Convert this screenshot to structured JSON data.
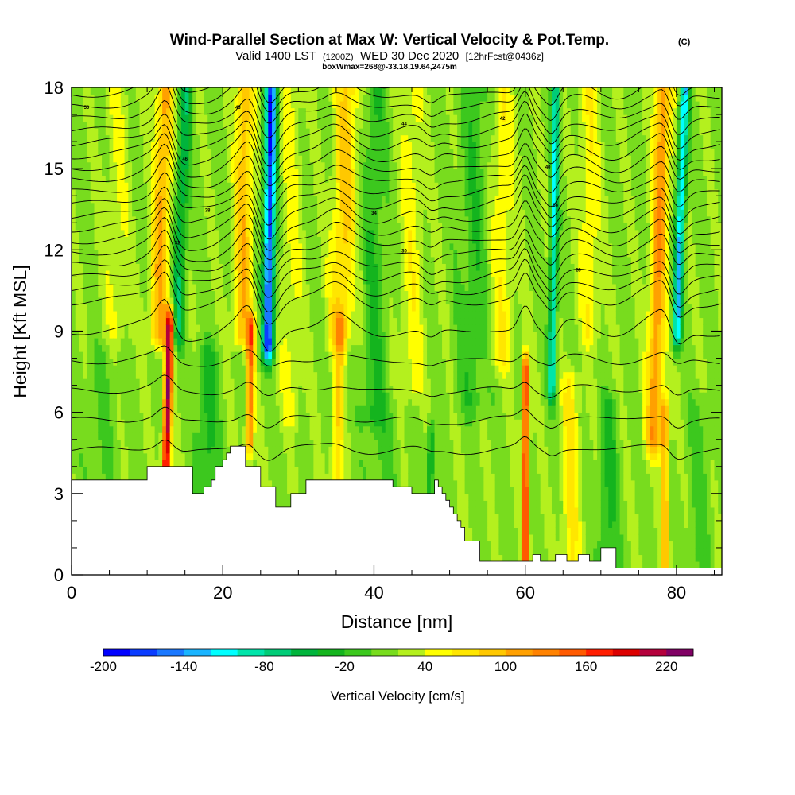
{
  "chart_data": {
    "type": "heatmap",
    "title": "Wind-Parallel Section at Max W: Vertical Velocity & Pot.Temp.",
    "title_mark": "(C)",
    "subtitle_parts": {
      "a": "Valid 1400 LST",
      "b": "(1200Z)",
      "c": "WED 30 Dec 2020",
      "d": "[12hrFcst@0436z]"
    },
    "subsubtitle": "boxWmax=268@-33.18,19.64,2475m",
    "xlabel": "Distance [nm]",
    "ylabel": "Height [Kft MSL]",
    "xlim": [
      0,
      86
    ],
    "ylim": [
      0,
      18
    ],
    "xticks": [
      "0",
      "20",
      "40",
      "60",
      "80"
    ],
    "yticks": [
      "0",
      "3",
      "6",
      "9",
      "12",
      "15",
      "18"
    ],
    "colorbar": {
      "label": "Vertical Velocity [cm/s]",
      "tick_labels": [
        "-200",
        "-140",
        "-80",
        "-20",
        "40",
        "100",
        "160",
        "220"
      ],
      "range": [
        -200,
        240
      ],
      "colors": [
        "#0000ff",
        "#0a3cff",
        "#1a78ff",
        "#19b4ff",
        "#00ffff",
        "#00e5aa",
        "#00cc77",
        "#00b43c",
        "#14b41e",
        "#3cc81e",
        "#78dc1e",
        "#b4f01e",
        "#ffff00",
        "#ffe600",
        "#ffc800",
        "#ffa000",
        "#ff8200",
        "#ff5a00",
        "#ff1e00",
        "#dc0000",
        "#b4003c",
        "#800064"
      ]
    },
    "updrafts": [
      {
        "x": 12.5,
        "w": 200
      },
      {
        "x": 23.5,
        "w": 120
      },
      {
        "x": 35,
        "w": 60
      },
      {
        "x": 60,
        "w": 180
      },
      {
        "x": 77,
        "w": 100
      }
    ],
    "downdrafts": [
      {
        "x": 26,
        "w": -190
      },
      {
        "x": 63.5,
        "w": -120
      },
      {
        "x": 80,
        "w": -140
      }
    ],
    "theta_labels": [
      "50",
      "48",
      "46",
      "44",
      "42",
      "40",
      "38",
      "36",
      "34",
      "32",
      "30",
      "28"
    ]
  }
}
